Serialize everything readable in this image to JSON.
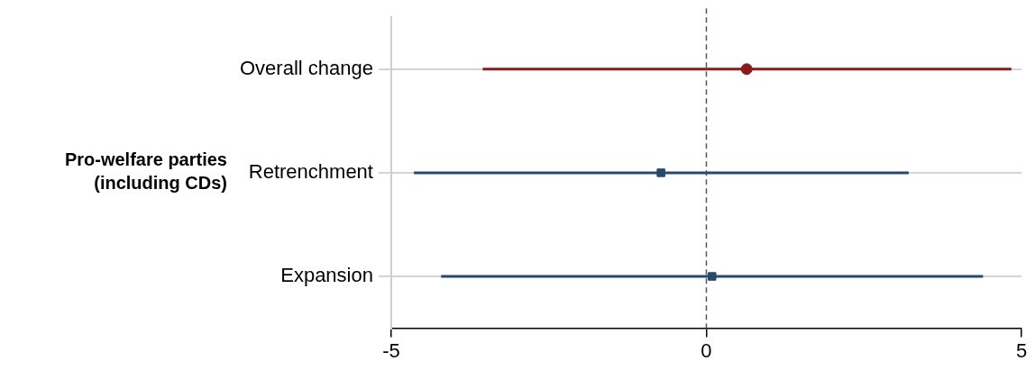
{
  "chart_data": {
    "type": "scatter",
    "orientation": "horizontal",
    "ylabel": "Pro-welfare parties\n(including CDs)",
    "categories": [
      "Overall change",
      "Retrenchment",
      "Expansion"
    ],
    "series": [
      {
        "color": "#8b1a1a",
        "marker": "circle",
        "values": [
          0.64,
          null,
          null
        ],
        "errors": [
          [
            -3.55,
            4.84
          ],
          null,
          null
        ]
      },
      {
        "color": "#27496d",
        "marker": "square",
        "values": [
          null,
          -0.72,
          0.09
        ],
        "errors": [
          null,
          [
            -4.64,
            3.21
          ],
          [
            -4.21,
            4.39
          ]
        ]
      }
    ],
    "xlim": [
      -5,
      5
    ],
    "xticks": [
      -5,
      0,
      5
    ],
    "grid": "y",
    "legend": false,
    "ref_lines": [
      {
        "axis": "x",
        "value": 0,
        "line_style": "dashed",
        "color": "#555555"
      }
    ]
  }
}
